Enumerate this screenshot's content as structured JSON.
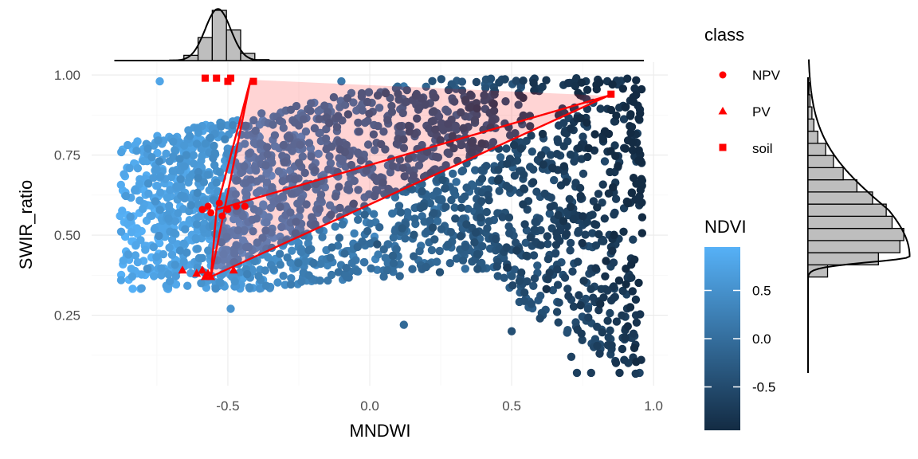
{
  "chart_data": {
    "type": "scatter",
    "xlabel": "MNDWI",
    "ylabel": "SWIR_ratio",
    "xlim": [
      -0.98,
      1.05
    ],
    "ylim": [
      0.03,
      1.04
    ],
    "x_ticks": [
      -0.5,
      0.0,
      0.5,
      1.0
    ],
    "x_tick_labels": [
      "-0.5",
      "0.0",
      "0.5",
      "1.0"
    ],
    "y_ticks": [
      0.25,
      0.5,
      0.75,
      1.0
    ],
    "y_tick_labels": [
      "0.25",
      "0.50",
      "0.75",
      "1.00"
    ],
    "grid": true,
    "point_cloud": {
      "color_variable": "NDVI",
      "approx_point_count": 2200,
      "x_range": [
        -0.88,
        0.96
      ],
      "y_range": [
        0.06,
        0.99
      ],
      "ndvi_range": [
        -0.95,
        0.95
      ]
    },
    "endmembers": {
      "NPV": {
        "shape": "circle",
        "points": [
          [
            -0.59,
            0.58
          ],
          [
            -0.56,
            0.57
          ],
          [
            -0.53,
            0.6
          ],
          [
            -0.5,
            0.58
          ],
          [
            -0.47,
            0.59
          ],
          [
            -0.44,
            0.59
          ],
          [
            -0.57,
            0.59
          ],
          [
            -0.52,
            0.56
          ]
        ]
      },
      "PV": {
        "shape": "triangle",
        "points": [
          [
            -0.66,
            0.39
          ],
          [
            -0.61,
            0.38
          ],
          [
            -0.59,
            0.39
          ],
          [
            -0.57,
            0.38
          ],
          [
            -0.56,
            0.37
          ],
          [
            -0.58,
            0.37
          ],
          [
            -0.48,
            0.39
          ]
        ]
      },
      "soil": {
        "shape": "square",
        "points": [
          [
            -0.58,
            0.99
          ],
          [
            -0.54,
            0.99
          ],
          [
            -0.5,
            0.98
          ],
          [
            -0.49,
            0.99
          ],
          [
            -0.41,
            0.98
          ],
          [
            0.85,
            0.94
          ]
        ]
      }
    },
    "simplex_hull": [
      [
        -0.42,
        0.985
      ],
      [
        0.84,
        0.935
      ],
      [
        -0.56,
        0.37
      ]
    ],
    "simplex_lines": [
      [
        [
          -0.56,
          0.37
        ],
        [
          -0.42,
          0.985
        ]
      ],
      [
        [
          -0.56,
          0.37
        ],
        [
          0.84,
          0.935
        ]
      ],
      [
        [
          -0.54,
          0.58
        ],
        [
          -0.42,
          0.985
        ]
      ],
      [
        [
          -0.54,
          0.58
        ],
        [
          0.84,
          0.935
        ]
      ],
      [
        [
          -0.54,
          0.58
        ],
        [
          -0.56,
          0.37
        ]
      ]
    ],
    "marginal_top": {
      "variable": "MNDWI",
      "bin_width": 0.05,
      "centers": [
        -0.68,
        -0.63,
        -0.58,
        -0.53,
        -0.48,
        -0.43,
        -0.38
      ],
      "density": [
        0.1,
        1.1,
        4.8,
        10.5,
        6.4,
        1.5,
        0.2
      ]
    },
    "marginal_right": {
      "variable": "SWIR_ratio",
      "bin_width": 0.025,
      "centers": [
        0.375,
        0.4,
        0.425,
        0.45,
        0.475,
        0.5,
        0.525,
        0.55,
        0.575,
        0.6,
        0.625,
        0.65,
        0.675,
        0.7,
        0.725,
        0.75
      ],
      "density": [
        1.0,
        3.6,
        4.7,
        4.9,
        4.3,
        4.0,
        3.3,
        2.5,
        1.8,
        1.3,
        0.9,
        0.5,
        0.3,
        0.2,
        0.1,
        0.05
      ]
    },
    "legend_class": {
      "title": "class",
      "entries": [
        "NPV",
        "PV",
        "soil"
      ],
      "color": "#ff0000",
      "placement": "right"
    },
    "legend_ndvi": {
      "title": "NDVI",
      "tick_values": [
        0.5,
        0.0,
        -0.5
      ],
      "tick_labels": [
        "0.5",
        "0.0",
        "-0.5"
      ],
      "range": [
        -0.95,
        0.95
      ],
      "color_low": "#132b43",
      "color_high": "#56b1f7",
      "placement": "right"
    }
  }
}
